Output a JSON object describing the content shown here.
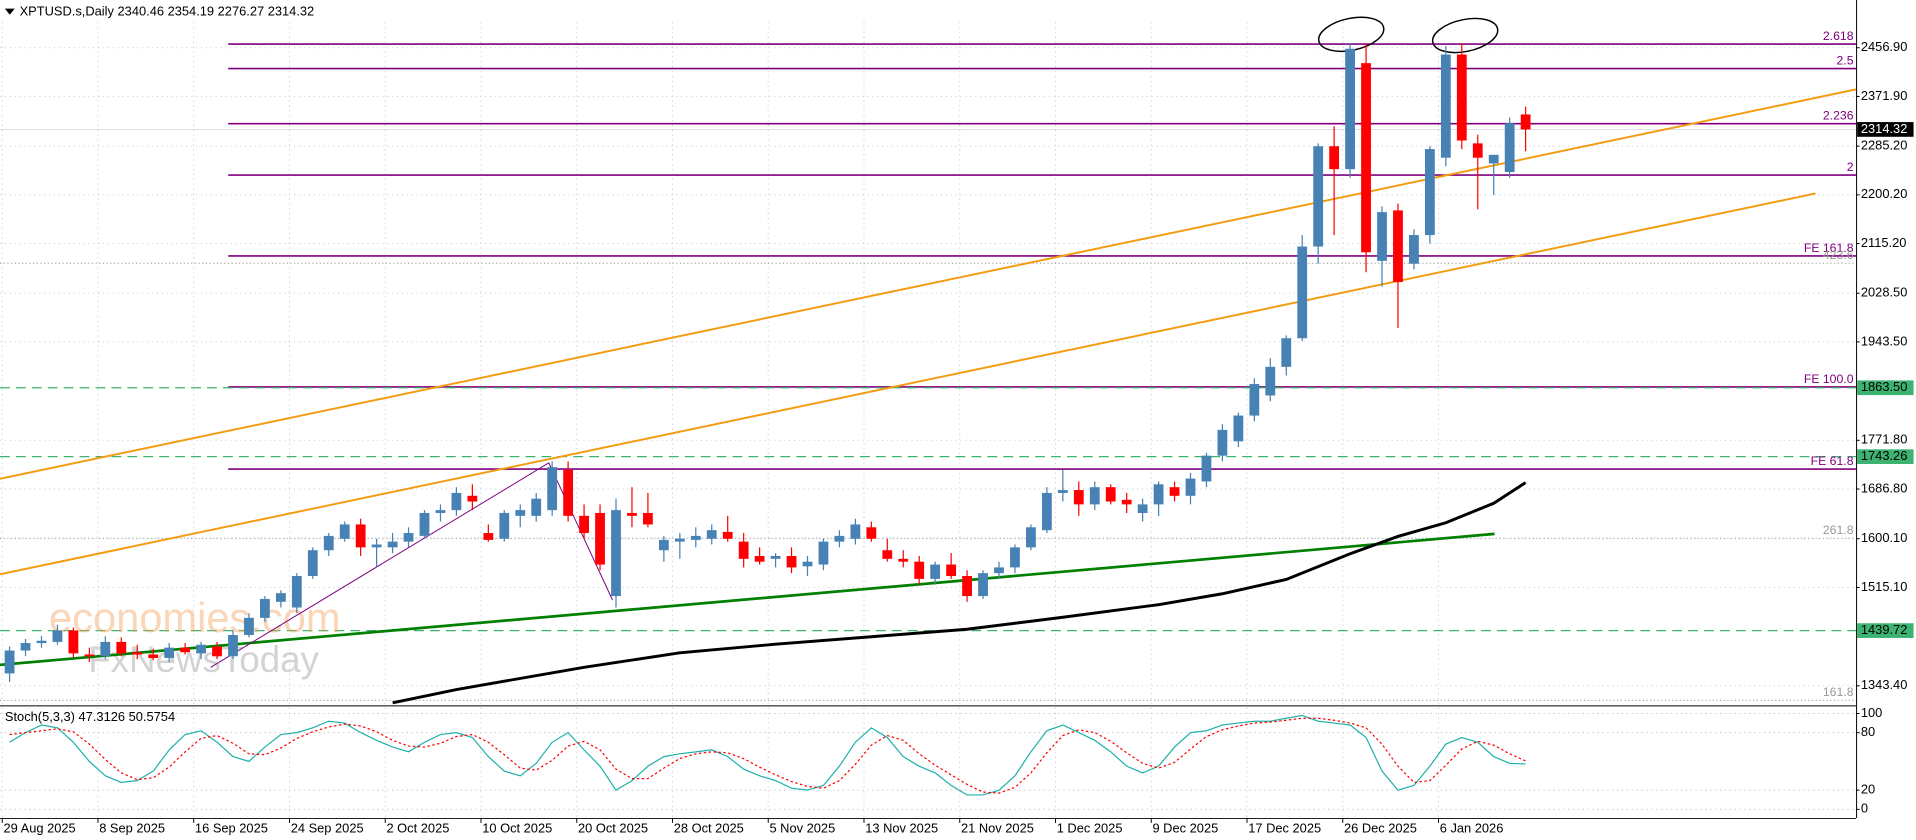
{
  "chart_data": [
    {
      "type": "candlestick",
      "title": "XPTUSD.s,Daily  2340.46 2354.19 2276.27 2314.32",
      "annotations": [
        "economies.com",
        "FxNewsToday"
      ],
      "up_color": "#4682b4",
      "down_color": "#ff0000",
      "grid": true,
      "xlim": [
        -0.6,
        115.7
      ],
      "ylim": [
        1311.5,
        2540.2
      ],
      "xticks": [
        {
          "value": 0,
          "label": "29 Aug 2025"
        },
        {
          "value": 6,
          "label": "8 Sep 2025"
        },
        {
          "value": 12,
          "label": "16 Sep 2025"
        },
        {
          "value": 18,
          "label": "24 Sep 2025"
        },
        {
          "value": 24,
          "label": "2 Oct 2025"
        },
        {
          "value": 30,
          "label": "10 Oct 2025"
        },
        {
          "value": 36,
          "label": "20 Oct 2025"
        },
        {
          "value": 42,
          "label": "28 Oct 2025"
        },
        {
          "value": 48,
          "label": "5 Nov 2025"
        },
        {
          "value": 54,
          "label": "13 Nov 2025"
        },
        {
          "value": 60,
          "label": "21 Nov 2025"
        },
        {
          "value": 66,
          "label": "1 Dec 2025"
        },
        {
          "value": 72,
          "label": "9 Dec 2025"
        },
        {
          "value": 78,
          "label": "17 Dec 2025"
        },
        {
          "value": 84,
          "label": "26 Dec 2025"
        },
        {
          "value": 90,
          "label": "6 Jan 2026"
        }
      ],
      "yticks": [
        {
          "value": 2456.9,
          "label": "2456.90"
        },
        {
          "value": 2371.9,
          "label": "2371.90"
        },
        {
          "value": 2285.2,
          "label": "2285.20"
        },
        {
          "value": 2200.2,
          "label": "2200.20"
        },
        {
          "value": 2115.2,
          "label": "2115.20"
        },
        {
          "value": 2028.5,
          "label": "2028.50"
        },
        {
          "value": 1943.5,
          "label": "1943.50"
        },
        {
          "value": 1771.8,
          "label": "1771.80"
        },
        {
          "value": 1686.8,
          "label": "1686.80"
        },
        {
          "value": 1600.1,
          "label": "1600.10"
        },
        {
          "value": 1515.1,
          "label": "1515.10"
        },
        {
          "value": 1343.4,
          "label": "1343.40"
        }
      ],
      "ohlc": [
        [
          1365,
          1412,
          1350,
          1405
        ],
        [
          1405,
          1425,
          1395,
          1418
        ],
        [
          1418,
          1430,
          1410,
          1422
        ],
        [
          1420,
          1450,
          1415,
          1440
        ],
        [
          1440,
          1445,
          1392,
          1400
        ],
        [
          1398,
          1410,
          1385,
          1395
        ],
        [
          1395,
          1430,
          1390,
          1420
        ],
        [
          1420,
          1428,
          1395,
          1400
        ],
        [
          1402,
          1415,
          1390,
          1398
        ],
        [
          1398,
          1408,
          1388,
          1392
        ],
        [
          1392,
          1418,
          1385,
          1410
        ],
        [
          1410,
          1418,
          1398,
          1402
        ],
        [
          1400,
          1420,
          1390,
          1415
        ],
        [
          1412,
          1420,
          1390,
          1395
        ],
        [
          1395,
          1440,
          1390,
          1432
        ],
        [
          1432,
          1470,
          1428,
          1462
        ],
        [
          1462,
          1500,
          1455,
          1495
        ],
        [
          1490,
          1510,
          1480,
          1505
        ],
        [
          1480,
          1540,
          1470,
          1535
        ],
        [
          1535,
          1585,
          1530,
          1580
        ],
        [
          1580,
          1610,
          1570,
          1605
        ],
        [
          1600,
          1630,
          1595,
          1625
        ],
        [
          1625,
          1635,
          1570,
          1585
        ],
        [
          1585,
          1600,
          1550,
          1590
        ],
        [
          1585,
          1610,
          1575,
          1595
        ],
        [
          1595,
          1620,
          1585,
          1610
        ],
        [
          1605,
          1650,
          1600,
          1645
        ],
        [
          1645,
          1660,
          1630,
          1650
        ],
        [
          1650,
          1690,
          1640,
          1680
        ],
        [
          1675,
          1695,
          1650,
          1665
        ],
        [
          1610,
          1625,
          1595,
          1598
        ],
        [
          1600,
          1650,
          1595,
          1645
        ],
        [
          1640,
          1660,
          1620,
          1650
        ],
        [
          1640,
          1680,
          1630,
          1670
        ],
        [
          1650,
          1735,
          1640,
          1725
        ],
        [
          1720,
          1735,
          1630,
          1640
        ],
        [
          1640,
          1660,
          1600,
          1610
        ],
        [
          1645,
          1660,
          1545,
          1555
        ],
        [
          1500,
          1670,
          1480,
          1650
        ],
        [
          1645,
          1690,
          1620,
          1640
        ],
        [
          1645,
          1680,
          1620,
          1625
        ],
        [
          1580,
          1605,
          1560,
          1598
        ],
        [
          1595,
          1610,
          1565,
          1600
        ],
        [
          1598,
          1620,
          1585,
          1605
        ],
        [
          1600,
          1625,
          1590,
          1615
        ],
        [
          1612,
          1640,
          1595,
          1600
        ],
        [
          1595,
          1610,
          1550,
          1565
        ],
        [
          1570,
          1585,
          1555,
          1560
        ],
        [
          1565,
          1575,
          1550,
          1570
        ],
        [
          1570,
          1585,
          1540,
          1550
        ],
        [
          1552,
          1570,
          1535,
          1560
        ],
        [
          1555,
          1600,
          1545,
          1595
        ],
        [
          1595,
          1615,
          1585,
          1605
        ],
        [
          1600,
          1635,
          1590,
          1625
        ],
        [
          1620,
          1630,
          1595,
          1600
        ],
        [
          1580,
          1600,
          1560,
          1565
        ],
        [
          1565,
          1580,
          1550,
          1560
        ],
        [
          1560,
          1570,
          1520,
          1530
        ],
        [
          1530,
          1560,
          1520,
          1555
        ],
        [
          1555,
          1575,
          1530,
          1535
        ],
        [
          1535,
          1545,
          1490,
          1500
        ],
        [
          1500,
          1545,
          1495,
          1540
        ],
        [
          1540,
          1560,
          1530,
          1550
        ],
        [
          1550,
          1590,
          1540,
          1585
        ],
        [
          1585,
          1625,
          1580,
          1620
        ],
        [
          1615,
          1690,
          1610,
          1680
        ],
        [
          1680,
          1720,
          1665,
          1685
        ],
        [
          1685,
          1700,
          1640,
          1660
        ],
        [
          1660,
          1700,
          1650,
          1690
        ],
        [
          1690,
          1695,
          1660,
          1665
        ],
        [
          1668,
          1680,
          1645,
          1660
        ],
        [
          1645,
          1670,
          1630,
          1660
        ],
        [
          1660,
          1700,
          1640,
          1695
        ],
        [
          1690,
          1700,
          1665,
          1675
        ],
        [
          1675,
          1715,
          1660,
          1705
        ],
        [
          1700,
          1750,
          1690,
          1745
        ],
        [
          1745,
          1800,
          1735,
          1790
        ],
        [
          1770,
          1820,
          1760,
          1815
        ],
        [
          1815,
          1880,
          1805,
          1870
        ],
        [
          1850,
          1915,
          1840,
          1900
        ],
        [
          1900,
          1955,
          1885,
          1950
        ],
        [
          1950,
          2130,
          1945,
          2110
        ],
        [
          2110,
          2290,
          2080,
          2285
        ],
        [
          2285,
          2320,
          2130,
          2245
        ],
        [
          2245,
          2465,
          2230,
          2455
        ],
        [
          2430,
          2465,
          2065,
          2100
        ],
        [
          2085,
          2180,
          2040,
          2170
        ],
        [
          2173,
          2185,
          1968,
          2048
        ],
        [
          2080,
          2140,
          2070,
          2130
        ],
        [
          2130,
          2285,
          2115,
          2280
        ],
        [
          2265,
          2460,
          2250,
          2445
        ],
        [
          2445,
          2465,
          2280,
          2295
        ],
        [
          2290,
          2305,
          2175,
          2265
        ],
        [
          2255,
          2270,
          2200,
          2270
        ],
        [
          2240,
          2335,
          2230,
          2325
        ],
        [
          2340.46,
          2354.19,
          2276.27,
          2314.32
        ]
      ],
      "ma": {
        "color": "#000000",
        "x": [
          24,
          28,
          36,
          42,
          48,
          54,
          60,
          66,
          72,
          76,
          80,
          84,
          87,
          90,
          93,
          95
        ],
        "values": [
          1313.6,
          1337,
          1375.6,
          1401,
          1416,
          1429,
          1442,
          1463,
          1485,
          1504,
          1529,
          1574,
          1604,
          1628,
          1662,
          1698
        ]
      },
      "levels": [
        {
          "name": "2.618",
          "price": 2463.3,
          "style": "fib",
          "color": "#800080"
        },
        {
          "name": "2.5",
          "price": 2420.6,
          "style": "fib",
          "color": "#800080"
        },
        {
          "name": "2.236",
          "price": 2324.4,
          "style": "fib",
          "color": "#800080"
        },
        {
          "name": "2",
          "price": 2234.7,
          "style": "fib",
          "color": "#800080"
        },
        {
          "name": "FE 161.8",
          "price": 2093.6,
          "style": "fib",
          "color": "#800080"
        },
        {
          "name": "423.6",
          "price": 2080.8,
          "style": "dotted",
          "color": "#999999"
        },
        {
          "name": "FE 100.0",
          "price": 1864.9,
          "style": "fib",
          "color": "#800080"
        },
        {
          "name": "FE 61.8",
          "price": 1721.7,
          "style": "fib",
          "color": "#800080"
        },
        {
          "name": "261.8",
          "price": 1601,
          "style": "dotted",
          "color": "#999999"
        },
        {
          "name": "161.8",
          "price": 1318,
          "style": "dotted",
          "color": "#999999"
        }
      ],
      "price_tags": [
        {
          "value": 2314.32,
          "label": "2314.32",
          "color": "#000000",
          "text_color": "#ffffff",
          "line": "solid"
        },
        {
          "value": 1863.5,
          "label": "1863.50",
          "color": "#3cb371",
          "text_color": "#000000",
          "line": "dashed"
        },
        {
          "value": 1743.26,
          "label": "1743.26",
          "color": "#3cb371",
          "text_color": "#000000",
          "line": "dashed"
        },
        {
          "value": 1439.72,
          "label": "1439.72",
          "color": "#3cb371",
          "text_color": "#000000",
          "line": "dashed"
        }
      ]
    },
    {
      "type": "line",
      "title": "Stoch(5,3,3) 47.3126 50.5754",
      "ylim": [
        -9,
        106
      ],
      "yticks": [
        100,
        80,
        20,
        0
      ],
      "series": [
        {
          "color": "#20b2aa",
          "dash": false,
          "values": [
            70,
            80,
            88,
            85,
            70,
            50,
            35,
            28,
            30,
            40,
            62,
            78,
            82,
            70,
            55,
            50,
            65,
            78,
            80,
            85,
            92,
            90,
            80,
            72,
            65,
            60,
            70,
            78,
            80,
            75,
            55,
            40,
            35,
            48,
            70,
            80,
            62,
            45,
            20,
            30,
            45,
            55,
            58,
            60,
            62,
            55,
            42,
            35,
            30,
            22,
            20,
            25,
            45,
            70,
            85,
            75,
            55,
            45,
            38,
            25,
            15,
            15,
            20,
            35,
            60,
            82,
            88,
            80,
            72,
            60,
            45,
            38,
            45,
            65,
            80,
            82,
            88,
            90,
            92,
            92,
            95,
            98,
            92,
            90,
            88,
            75,
            40,
            20,
            25,
            45,
            68,
            75,
            70,
            55,
            48,
            47.3126
          ]
        },
        {
          "color": "#ff0000",
          "dash": true,
          "values": [
            78,
            80,
            82,
            84,
            81,
            68,
            52,
            38,
            31,
            33,
            44,
            60,
            74,
            77,
            69,
            58,
            57,
            64,
            74,
            81,
            86,
            89,
            87,
            81,
            72,
            66,
            65,
            69,
            76,
            78,
            70,
            57,
            43,
            41,
            51,
            66,
            71,
            62,
            42,
            32,
            32,
            43,
            53,
            58,
            60,
            59,
            53,
            44,
            36,
            29,
            24,
            22,
            30,
            47,
            67,
            77,
            72,
            58,
            46,
            36,
            26,
            18,
            17,
            23,
            38,
            59,
            77,
            83,
            80,
            71,
            59,
            48,
            43,
            49,
            63,
            76,
            83,
            87,
            90,
            91,
            93,
            95,
            95,
            93,
            90,
            85,
            68,
            45,
            28,
            30,
            46,
            63,
            71,
            67,
            58,
            50.5754
          ]
        }
      ]
    }
  ]
}
